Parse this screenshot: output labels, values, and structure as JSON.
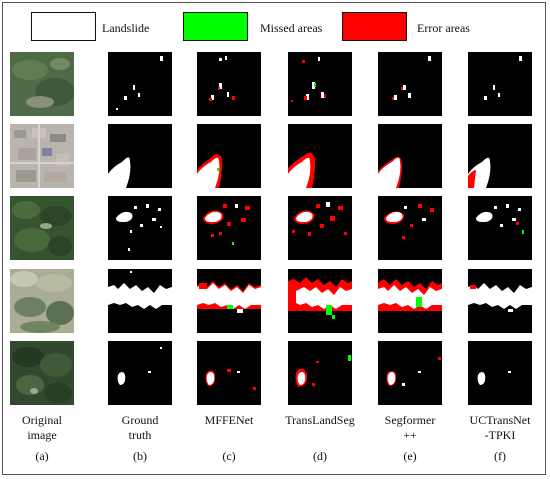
{
  "legend": [
    {
      "label": "Landslide",
      "color": "#ffffff"
    },
    {
      "label": "Missed areas",
      "color": "#00ff00"
    },
    {
      "label": "Error areas",
      "color": "#ff0000"
    }
  ],
  "columns": [
    {
      "label_line1": "Original",
      "label_line2": "image",
      "letter": "(a)"
    },
    {
      "label_line1": "Ground",
      "label_line2": "truth",
      "letter": "(b)"
    },
    {
      "label_line1": "MFFENet",
      "label_line2": "",
      "letter": "(c)"
    },
    {
      "label_line1": "TransLandSeg",
      "label_line2": "",
      "letter": "(d)"
    },
    {
      "label_line1": "Segformer",
      "label_line2": "++",
      "letter": "(e)"
    },
    {
      "label_line1": "UCTransNet",
      "label_line2": "-TPKI",
      "letter": "(f)"
    }
  ]
}
